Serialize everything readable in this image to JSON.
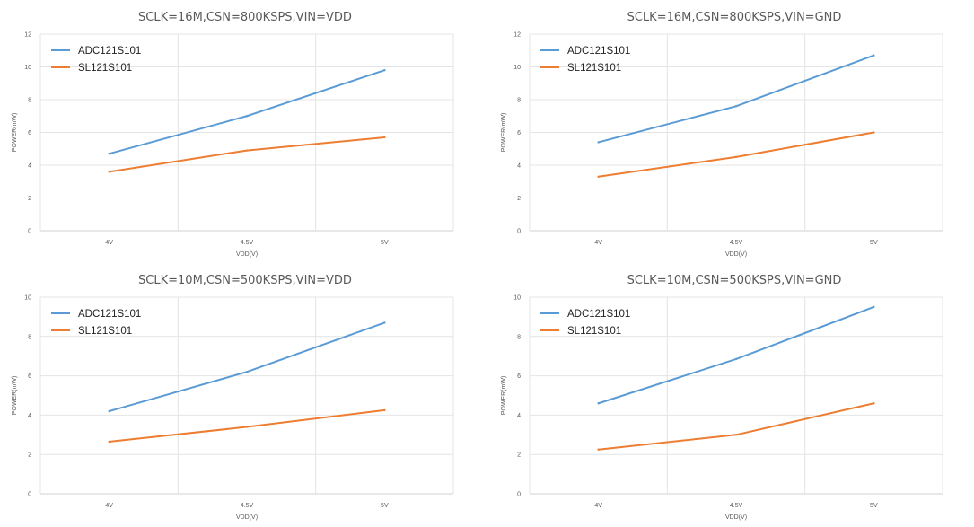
{
  "chart_data": [
    {
      "type": "line",
      "title": "SCLK=16M,CSN=800KSPS,VIN=VDD",
      "xlabel": "VDD(V)",
      "ylabel": "POWER(mW)",
      "categories": [
        "4V",
        "4.5V",
        "5V"
      ],
      "ylim": [
        0,
        12
      ],
      "yticks": [
        0,
        2,
        4,
        6,
        8,
        10,
        12
      ],
      "grid": true,
      "legend": "top-left",
      "series": [
        {
          "name": "ADC121S101",
          "color": "#5B9BD5",
          "values": [
            4.7,
            7.0,
            9.8
          ]
        },
        {
          "name": "SL121S101",
          "color": "#ED7D31",
          "values": [
            3.6,
            4.9,
            5.7
          ]
        }
      ]
    },
    {
      "type": "line",
      "title": "SCLK=16M,CSN=800KSPS,VIN=GND",
      "xlabel": "VDD(V)",
      "ylabel": "POWER(mW)",
      "categories": [
        "4V",
        "4.5V",
        "5V"
      ],
      "ylim": [
        0,
        12
      ],
      "yticks": [
        0,
        2,
        4,
        6,
        8,
        10,
        12
      ],
      "grid": true,
      "legend": "top-left",
      "series": [
        {
          "name": "ADC121S101",
          "color": "#5B9BD5",
          "values": [
            5.4,
            7.6,
            10.7
          ]
        },
        {
          "name": "SL121S101",
          "color": "#ED7D31",
          "values": [
            3.3,
            4.5,
            6.0
          ]
        }
      ]
    },
    {
      "type": "line",
      "title": "SCLK=10M,CSN=500KSPS,VIN=VDD",
      "xlabel": "VDD(V)",
      "ylabel": "POWER(mW)",
      "categories": [
        "4V",
        "4.5V",
        "5V"
      ],
      "ylim": [
        0,
        10
      ],
      "yticks": [
        0,
        2,
        4,
        6,
        8,
        10
      ],
      "grid": true,
      "legend": "top-left",
      "series": [
        {
          "name": "ADC121S101",
          "color": "#5B9BD5",
          "values": [
            4.2,
            6.2,
            8.7
          ]
        },
        {
          "name": "SL121S101",
          "color": "#ED7D31",
          "values": [
            2.65,
            3.4,
            4.25
          ]
        }
      ]
    },
    {
      "type": "line",
      "title": "SCLK=10M,CSN=500KSPS,VIN=GND",
      "xlabel": "VDD(V)",
      "ylabel": "POWER(mW)",
      "categories": [
        "4V",
        "4.5V",
        "5V"
      ],
      "ylim": [
        0,
        10
      ],
      "yticks": [
        0,
        2,
        4,
        6,
        8,
        10
      ],
      "grid": true,
      "legend": "top-left",
      "series": [
        {
          "name": "ADC121S101",
          "color": "#5B9BD5",
          "values": [
            4.6,
            6.85,
            9.5
          ]
        },
        {
          "name": "SL121S101",
          "color": "#ED7D31",
          "values": [
            2.25,
            3.0,
            4.6
          ]
        }
      ]
    }
  ]
}
